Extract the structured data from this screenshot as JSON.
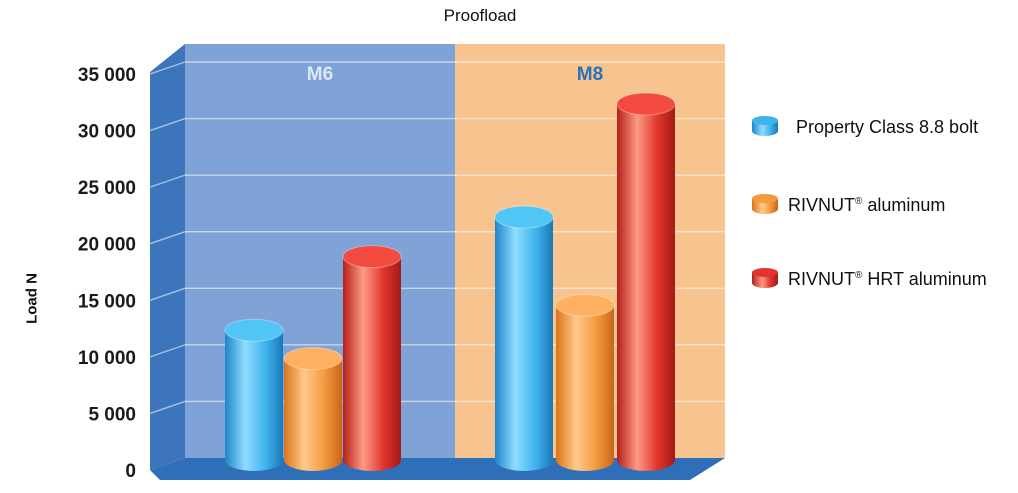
{
  "chart_data": {
    "type": "bar",
    "title": "Proofload",
    "ylabel": "Load N",
    "xlabel": "",
    "ylim": [
      0,
      35000
    ],
    "ytick_labels": [
      "0",
      "5 000",
      "10 000",
      "15 000",
      "20 000",
      "25 000",
      "30 000",
      "35 000"
    ],
    "yticks": [
      0,
      5000,
      10000,
      15000,
      20000,
      25000,
      30000,
      35000
    ],
    "categories": [
      "M6",
      "M8"
    ],
    "category_colors": [
      "#7fa3d6",
      "#f7c48f"
    ],
    "grid": true,
    "legend_position": "right",
    "series": [
      {
        "name": "Property Class 8.8 bolt",
        "values": [
          12000,
          22000
        ],
        "color": "#3fb4ec"
      },
      {
        "name": "RIVNUT® aluminum",
        "values": [
          9500,
          14200
        ],
        "color": "#f39a3f"
      },
      {
        "name": "RIVNUT® HRT aluminum",
        "values": [
          18500,
          32000
        ],
        "color": "#e0342c"
      }
    ],
    "legend_labels": [
      {
        "main": "Property Class 8.8 bolt",
        "sup": ""
      },
      {
        "main": "RIVNUT",
        "sup": "®",
        "rest": " aluminum"
      },
      {
        "main": "RIVNUT",
        "sup": "®",
        "rest": " HRT aluminum"
      }
    ]
  }
}
